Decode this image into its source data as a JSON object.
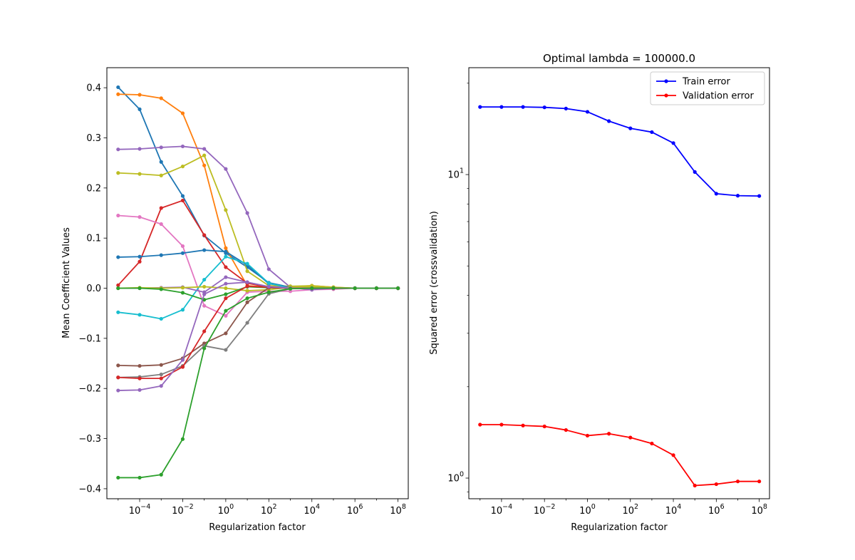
{
  "chart_data": [
    {
      "type": "line",
      "title": "",
      "xlabel": "Regularization factor",
      "ylabel": "Mean Coefficient Values",
      "x_scale": "log",
      "x": [
        1e-05,
        0.0001,
        0.001,
        0.01,
        0.1,
        1,
        10,
        100,
        1000,
        10000,
        100000,
        1000000,
        10000000,
        100000000
      ],
      "xlim": [
        3e-06,
        300000000.0
      ],
      "ylim": [
        -0.42,
        0.44
      ],
      "x_ticks": [
        0.0001,
        0.01,
        1,
        100,
        10000,
        1000000,
        100000000
      ],
      "x_tick_labels": [
        {
          "base": "10",
          "exp": "−4"
        },
        {
          "base": "10",
          "exp": "−2"
        },
        {
          "base": "10",
          "exp": "0"
        },
        {
          "base": "10",
          "exp": "2"
        },
        {
          "base": "10",
          "exp": "4"
        },
        {
          "base": "10",
          "exp": "6"
        },
        {
          "base": "10",
          "exp": "8"
        }
      ],
      "y_ticks": [
        -0.4,
        -0.3,
        -0.2,
        -0.1,
        0.0,
        0.1,
        0.2,
        0.3,
        0.4
      ],
      "y_tick_labels": [
        "−0.4",
        "−0.3",
        "−0.2",
        "−0.1",
        "0.0",
        "0.1",
        "0.2",
        "0.3",
        "0.4"
      ],
      "grid": false,
      "marker": "dot",
      "series": [
        {
          "color": "#1f77b4",
          "values": [
            0.401,
            0.357,
            0.252,
            0.184,
            0.105,
            0.07,
            0.042,
            0.011,
            0.002,
            0.001,
            0.0,
            0.0,
            0.0,
            0.0
          ]
        },
        {
          "color": "#ff7f0e",
          "values": [
            0.387,
            0.386,
            0.379,
            0.349,
            0.245,
            0.08,
            0.005,
            0.002,
            0.003,
            0.005,
            0.002,
            0.0,
            0.0,
            0.0
          ]
        },
        {
          "color": "#9467bd",
          "values": [
            0.277,
            0.278,
            0.281,
            0.283,
            0.278,
            0.238,
            0.15,
            0.038,
            0.002,
            0.001,
            0.0,
            0.0,
            0.0,
            0.0
          ]
        },
        {
          "color": "#bcbd22",
          "values": [
            0.23,
            0.228,
            0.225,
            0.243,
            0.265,
            0.156,
            0.034,
            0.005,
            0.004,
            0.005,
            0.002,
            0.0,
            0.0,
            0.0
          ]
        },
        {
          "color": "#d62728",
          "values": [
            0.006,
            0.053,
            0.16,
            0.175,
            0.106,
            0.042,
            0.01,
            0.002,
            0.0,
            0.0,
            0.0,
            0.0,
            0.0,
            0.0
          ]
        },
        {
          "color": "#e377c2",
          "values": [
            0.145,
            0.142,
            0.128,
            0.084,
            -0.035,
            -0.055,
            -0.008,
            -0.006,
            -0.006,
            -0.003,
            -0.002,
            0.0,
            0.0,
            0.0
          ]
        },
        {
          "color": "#1f77b4",
          "values": [
            0.062,
            0.063,
            0.066,
            0.07,
            0.076,
            0.073,
            0.046,
            0.009,
            0.002,
            0.0,
            0.0,
            0.0,
            0.0,
            0.0
          ]
        },
        {
          "color": "#17becf",
          "values": [
            -0.048,
            -0.053,
            -0.061,
            -0.043,
            0.017,
            0.063,
            0.049,
            0.01,
            0.0,
            0.0,
            0.0,
            0.0,
            0.0,
            0.0
          ]
        },
        {
          "color": "#9467bd",
          "values": [
            0.0,
            0.0,
            0.001,
            0.002,
            -0.008,
            0.022,
            0.012,
            0.003,
            0.001,
            -0.003,
            0.0,
            0.0,
            0.0,
            0.0
          ]
        },
        {
          "color": "#bcbd22",
          "values": [
            0.0,
            0.001,
            0.0,
            0.001,
            0.003,
            0.0,
            -0.005,
            -0.003,
            0.002,
            0.003,
            0.001,
            0.0,
            0.0,
            0.0
          ]
        },
        {
          "color": "#2ca02c",
          "values": [
            0.0,
            0.0,
            -0.002,
            -0.009,
            -0.023,
            -0.012,
            0.003,
            0.001,
            0.0,
            0.0,
            0.0,
            0.0,
            0.0,
            0.0
          ]
        },
        {
          "color": "#8c564b",
          "values": [
            -0.154,
            -0.155,
            -0.153,
            -0.14,
            -0.11,
            -0.09,
            -0.028,
            0.001,
            0.0,
            0.0,
            0.0,
            0.0,
            0.0,
            0.0
          ]
        },
        {
          "color": "#7f7f7f",
          "values": [
            -0.178,
            -0.177,
            -0.172,
            -0.155,
            -0.115,
            -0.123,
            -0.069,
            -0.011,
            -0.001,
            0.0,
            0.0,
            0.0,
            0.0,
            0.0
          ]
        },
        {
          "color": "#d62728",
          "values": [
            -0.178,
            -0.18,
            -0.18,
            -0.157,
            -0.086,
            -0.02,
            0.004,
            0.002,
            0.0,
            0.0,
            0.0,
            0.0,
            0.0,
            0.0
          ]
        },
        {
          "color": "#9467bd",
          "values": [
            -0.204,
            -0.203,
            -0.195,
            -0.143,
            -0.012,
            0.009,
            0.012,
            0.003,
            0.0,
            0.0,
            0.0,
            0.0,
            0.0,
            0.0
          ]
        },
        {
          "color": "#2ca02c",
          "values": [
            -0.378,
            -0.378,
            -0.372,
            -0.301,
            -0.12,
            -0.045,
            -0.02,
            -0.008,
            -0.001,
            0.0,
            0.0,
            0.0,
            0.0,
            0.0
          ]
        }
      ]
    },
    {
      "type": "line",
      "title": "Optimal lambda = 100000.0",
      "xlabel": "Regularization factor",
      "ylabel": "Squared error (crossvalidation)",
      "x_scale": "log",
      "y_scale": "log",
      "x": [
        1e-05,
        0.0001,
        0.001,
        0.01,
        0.1,
        1,
        10,
        100,
        1000,
        10000,
        100000,
        1000000,
        10000000,
        100000000
      ],
      "xlim": [
        3e-06,
        300000000.0
      ],
      "ylim": [
        0.855,
        22.5
      ],
      "x_ticks": [
        0.0001,
        0.01,
        1,
        100,
        10000,
        1000000,
        100000000
      ],
      "x_tick_labels": [
        {
          "base": "10",
          "exp": "−4"
        },
        {
          "base": "10",
          "exp": "−2"
        },
        {
          "base": "10",
          "exp": "0"
        },
        {
          "base": "10",
          "exp": "2"
        },
        {
          "base": "10",
          "exp": "4"
        },
        {
          "base": "10",
          "exp": "6"
        },
        {
          "base": "10",
          "exp": "8"
        }
      ],
      "y_ticks": [
        1,
        10
      ],
      "y_tick_labels": [
        {
          "base": "10",
          "exp": "0"
        },
        {
          "base": "10",
          "exp": "1"
        }
      ],
      "grid": false,
      "legend_position": "top-right",
      "marker": "dot",
      "series": [
        {
          "name": "Train error",
          "color": "#0000ff",
          "values": [
            16.7,
            16.7,
            16.7,
            16.65,
            16.5,
            16.1,
            15.0,
            14.2,
            13.8,
            12.7,
            10.2,
            8.65,
            8.52,
            8.5
          ]
        },
        {
          "name": "Validation error",
          "color": "#ff0000",
          "values": [
            1.5,
            1.5,
            1.49,
            1.48,
            1.44,
            1.38,
            1.4,
            1.36,
            1.3,
            1.19,
            0.945,
            0.955,
            0.975,
            0.975
          ]
        }
      ]
    }
  ]
}
